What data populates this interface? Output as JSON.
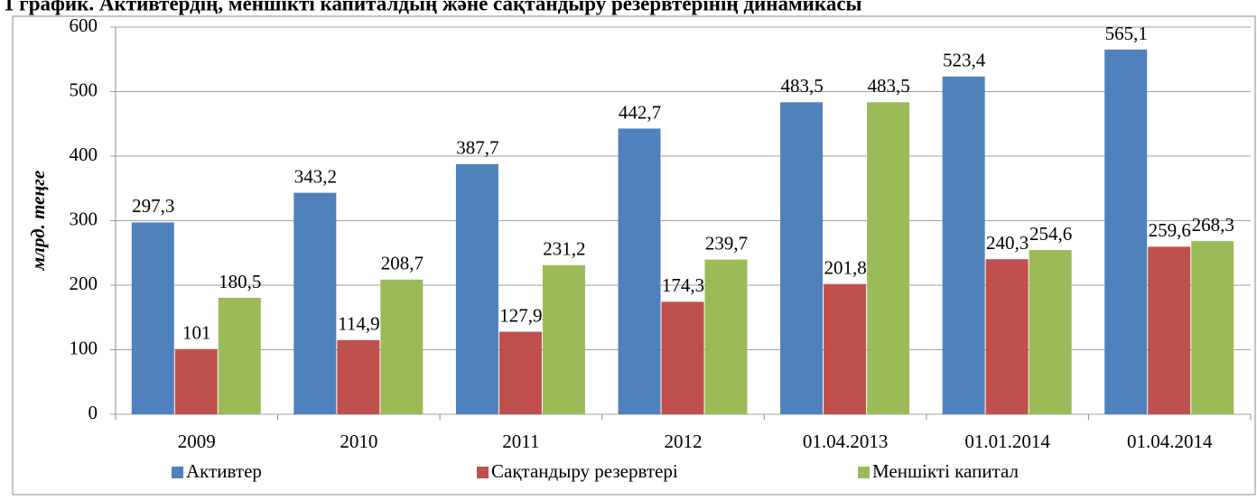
{
  "chart_data": {
    "type": "bar",
    "title": "1 график. Активтердің, меншікті капиталдың және сақтандыру резервтерінің динамикасы",
    "y_label": "млрд. теңге",
    "categories": [
      "2009",
      "2010",
      "2011",
      "2012",
      "01.04.2013",
      "01.01.2014",
      "01.04.2014"
    ],
    "series": [
      {
        "name": "Активтер",
        "color": "#4f81bd",
        "values": [
          297.3,
          343.2,
          387.7,
          442.7,
          483.5,
          523.4,
          565.1
        ],
        "value_labels": [
          "297,3",
          "343,2",
          "387,7",
          "442,7",
          "483,5",
          "523,4",
          "565,1"
        ]
      },
      {
        "name": "Сақтандыру резервтері",
        "color": "#c0504d",
        "values": [
          101,
          114.9,
          127.9,
          174.3,
          201.8,
          240.3,
          259.6
        ],
        "value_labels": [
          "101",
          "114,9",
          "127,9",
          "174,3",
          "201,8",
          "240,3",
          "259,6"
        ]
      },
      {
        "name": "Меншікті капитал",
        "color": "#9bbb59",
        "values": [
          180.5,
          208.7,
          231.2,
          239.7,
          483.5,
          254.6,
          268.3
        ],
        "value_labels": [
          "180,5",
          "208,7",
          "231,2",
          "239,7",
          "483,5",
          "254,6",
          "268,3"
        ]
      }
    ],
    "ylim": [
      0,
      600
    ],
    "yticks": [
      0,
      100,
      200,
      300,
      400,
      500,
      600
    ],
    "grid": true,
    "legend": "bottom"
  }
}
